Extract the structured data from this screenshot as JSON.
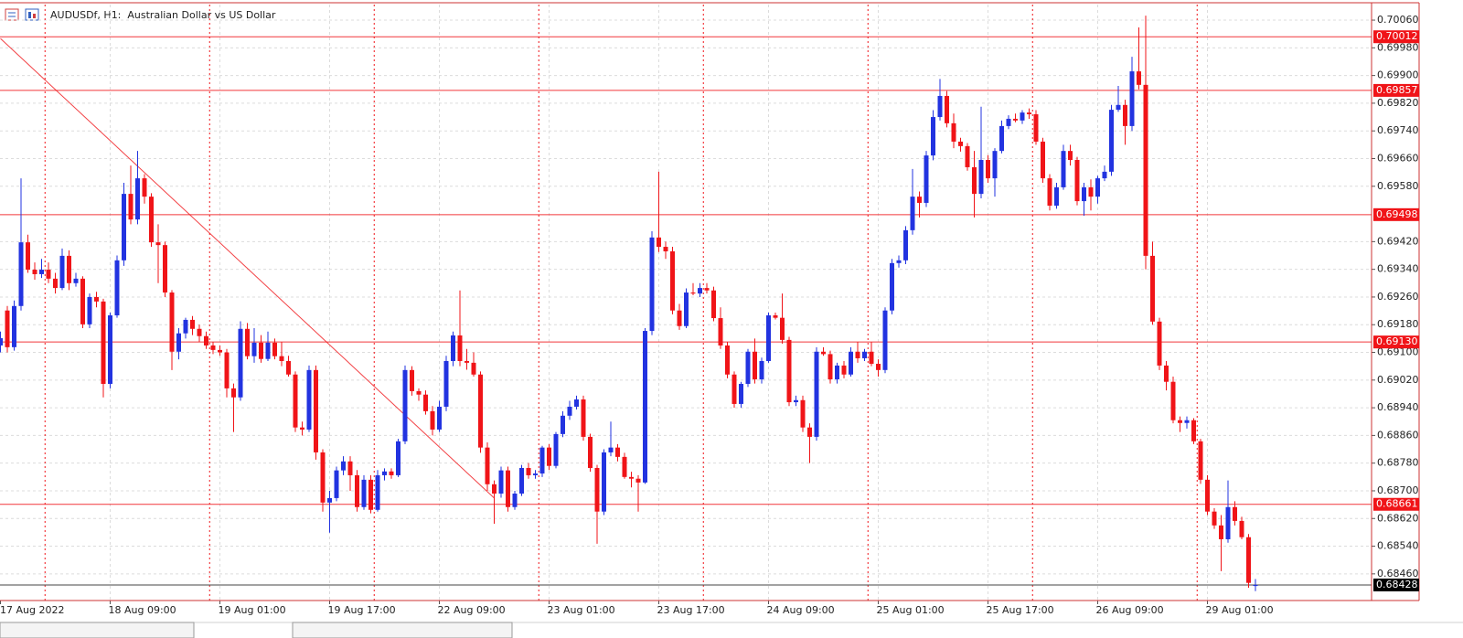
{
  "chart_data": {
    "type": "candlestick",
    "title": "AUDUSDf, H1:  Australian Dollar vs US Dollar",
    "up_color": "#2233e0",
    "down_color": "#f01418",
    "level_color": "#f01418",
    "grid": true,
    "ylim": [
      0.68383,
      0.70105
    ],
    "yticks": [
      {
        "value": 0.7006,
        "label": "0.70060"
      },
      {
        "value": 0.6998,
        "label": "0.69980"
      },
      {
        "value": 0.699,
        "label": "0.69900"
      },
      {
        "value": 0.6982,
        "label": "0.69820"
      },
      {
        "value": 0.6974,
        "label": "0.69740"
      },
      {
        "value": 0.6966,
        "label": "0.69660"
      },
      {
        "value": 0.6958,
        "label": "0.69580"
      },
      {
        "value": 0.6942,
        "label": "0.69420"
      },
      {
        "value": 0.6934,
        "label": "0.69340"
      },
      {
        "value": 0.6926,
        "label": "0.69260"
      },
      {
        "value": 0.6918,
        "label": "0.69180"
      },
      {
        "value": 0.691,
        "label": "0.69100"
      },
      {
        "value": 0.6902,
        "label": "0.69020"
      },
      {
        "value": 0.6894,
        "label": "0.68940"
      },
      {
        "value": 0.6886,
        "label": "0.68860"
      },
      {
        "value": 0.6878,
        "label": "0.68780"
      },
      {
        "value": 0.687,
        "label": "0.68700"
      },
      {
        "value": 0.6862,
        "label": "0.68620"
      },
      {
        "value": 0.6854,
        "label": "0.68540"
      },
      {
        "value": 0.6846,
        "label": "0.68460"
      }
    ],
    "levels": [
      {
        "value": 0.70012,
        "label": "0.70012"
      },
      {
        "value": 0.69857,
        "label": "0.69857"
      },
      {
        "value": 0.69498,
        "label": "0.69498"
      },
      {
        "value": 0.6913,
        "label": "0.69130"
      },
      {
        "value": 0.68661,
        "label": "0.68661"
      }
    ],
    "bid": {
      "value": 0.68428,
      "label": "0.68428"
    },
    "trendline": [
      0.70007,
      0.68679
    ],
    "categories": [
      "17 Aug 2022",
      null,
      null,
      null,
      null,
      null,
      null,
      null,
      null,
      null,
      null,
      null,
      null,
      null,
      null,
      null,
      "18 Aug 09:00",
      null,
      null,
      null,
      null,
      null,
      null,
      null,
      null,
      null,
      null,
      null,
      null,
      null,
      null,
      null,
      "19 Aug 01:00",
      null,
      null,
      null,
      null,
      null,
      null,
      null,
      null,
      null,
      null,
      null,
      null,
      null,
      null,
      null,
      "19 Aug 17:00",
      null,
      null,
      null,
      null,
      null,
      null,
      null,
      null,
      null,
      null,
      null,
      null,
      null,
      null,
      null,
      "22 Aug 09:00",
      null,
      null,
      null,
      null,
      null,
      null,
      null,
      null,
      null,
      null,
      null,
      null,
      null,
      null,
      null,
      "23 Aug 01:00",
      null,
      null,
      null,
      null,
      null,
      null,
      null,
      null,
      null,
      null,
      null,
      null,
      null,
      null,
      null,
      "23 Aug 17:00",
      null,
      null,
      null,
      null,
      null,
      null,
      null,
      null,
      null,
      null,
      null,
      null,
      null,
      null,
      null,
      "24 Aug 09:00",
      null,
      null,
      null,
      null,
      null,
      null,
      null,
      null,
      null,
      null,
      null,
      null,
      null,
      null,
      null,
      "25 Aug 01:00",
      null,
      null,
      null,
      null,
      null,
      null,
      null,
      null,
      null,
      null,
      null,
      null,
      null,
      null,
      null,
      "25 Aug 17:00",
      null,
      null,
      null,
      null,
      null,
      null,
      null,
      null,
      null,
      null,
      null,
      null,
      null,
      null,
      null,
      "26 Aug 09:00",
      null,
      null,
      null,
      null,
      null,
      null,
      null,
      null,
      null,
      null,
      null,
      null,
      null,
      null,
      null,
      "29 Aug 01:00",
      null,
      null,
      null,
      null,
      null,
      null,
      null
    ],
    "ohlc": [
      [
        0.6912,
        0.6916,
        0.691,
        0.69141
      ],
      [
        0.69221,
        0.69234,
        0.691,
        0.69115
      ],
      [
        0.69115,
        0.6925,
        0.69105,
        0.69234
      ],
      [
        0.69234,
        0.69603,
        0.69221,
        0.69418
      ],
      [
        0.69418,
        0.6944,
        0.6933,
        0.69339
      ],
      [
        0.69339,
        0.6936,
        0.6931,
        0.69326
      ],
      [
        0.69326,
        0.6937,
        0.69315,
        0.69339
      ],
      [
        0.69339,
        0.6936,
        0.693,
        0.69313
      ],
      [
        0.69313,
        0.6933,
        0.6927,
        0.69286
      ],
      [
        0.69286,
        0.694,
        0.6928,
        0.69379
      ],
      [
        0.69379,
        0.69395,
        0.6928,
        0.693
      ],
      [
        0.693,
        0.6933,
        0.6929,
        0.69313
      ],
      [
        0.69313,
        0.6932,
        0.6917,
        0.69181
      ],
      [
        0.69181,
        0.6927,
        0.6917,
        0.6926
      ],
      [
        0.6926,
        0.69275,
        0.6923,
        0.69247
      ],
      [
        0.69247,
        0.69255,
        0.6897,
        0.69009
      ],
      [
        0.69009,
        0.69215,
        0.68996,
        0.69207
      ],
      [
        0.69207,
        0.6938,
        0.692,
        0.69366
      ],
      [
        0.69366,
        0.6959,
        0.6935,
        0.69558
      ],
      [
        0.69558,
        0.6964,
        0.6947,
        0.69484
      ],
      [
        0.69484,
        0.69682,
        0.6947,
        0.69603
      ],
      [
        0.69603,
        0.69615,
        0.6953,
        0.6955
      ],
      [
        0.6955,
        0.6956,
        0.69405,
        0.69418
      ],
      [
        0.69418,
        0.6947,
        0.693,
        0.6941
      ],
      [
        0.6941,
        0.6942,
        0.6926,
        0.69273
      ],
      [
        0.69273,
        0.6928,
        0.69049,
        0.69102
      ],
      [
        0.69102,
        0.6917,
        0.6908,
        0.69155
      ],
      [
        0.69155,
        0.692,
        0.6914,
        0.69194
      ],
      [
        0.69194,
        0.69205,
        0.6915,
        0.69168
      ],
      [
        0.69168,
        0.6918,
        0.6913,
        0.69147
      ],
      [
        0.69147,
        0.6916,
        0.6911,
        0.6912
      ],
      [
        0.6912,
        0.6913,
        0.69095,
        0.69107
      ],
      [
        0.69107,
        0.6912,
        0.6909,
        0.691
      ],
      [
        0.691,
        0.6911,
        0.6897,
        0.68996
      ],
      [
        0.68996,
        0.6901,
        0.6887,
        0.6897
      ],
      [
        0.6897,
        0.6919,
        0.6896,
        0.69168
      ],
      [
        0.69168,
        0.69185,
        0.6908,
        0.69089
      ],
      [
        0.69089,
        0.6917,
        0.6907,
        0.69128
      ],
      [
        0.69128,
        0.6915,
        0.6907,
        0.69081
      ],
      [
        0.69081,
        0.6916,
        0.69075,
        0.69128
      ],
      [
        0.69128,
        0.6914,
        0.6908,
        0.69089
      ],
      [
        0.69089,
        0.6913,
        0.6906,
        0.69075
      ],
      [
        0.69075,
        0.6909,
        0.6903,
        0.69036
      ],
      [
        0.69036,
        0.69045,
        0.6887,
        0.68883
      ],
      [
        0.68883,
        0.689,
        0.6886,
        0.68877
      ],
      [
        0.68877,
        0.69062,
        0.6887,
        0.69049
      ],
      [
        0.69049,
        0.69062,
        0.6879,
        0.68811
      ],
      [
        0.68811,
        0.6882,
        0.6864,
        0.68666
      ],
      [
        0.68666,
        0.687,
        0.68579,
        0.68679
      ],
      [
        0.68679,
        0.6877,
        0.6867,
        0.68759
      ],
      [
        0.68759,
        0.688,
        0.68745,
        0.68785
      ],
      [
        0.68785,
        0.688,
        0.687,
        0.68745
      ],
      [
        0.68745,
        0.6876,
        0.6864,
        0.68653
      ],
      [
        0.68653,
        0.68745,
        0.68645,
        0.68732
      ],
      [
        0.68732,
        0.68745,
        0.68635,
        0.68645
      ],
      [
        0.68645,
        0.6876,
        0.6864,
        0.68745
      ],
      [
        0.68745,
        0.68765,
        0.6873,
        0.68756
      ],
      [
        0.68756,
        0.68765,
        0.68735,
        0.68745
      ],
      [
        0.68745,
        0.6885,
        0.6874,
        0.68843
      ],
      [
        0.68843,
        0.69062,
        0.68835,
        0.69049
      ],
      [
        0.69049,
        0.6906,
        0.68975,
        0.68988
      ],
      [
        0.68988,
        0.68996,
        0.6896,
        0.68978
      ],
      [
        0.68978,
        0.6899,
        0.6892,
        0.6893
      ],
      [
        0.6893,
        0.68945,
        0.6886,
        0.68877
      ],
      [
        0.68877,
        0.6896,
        0.6887,
        0.68943
      ],
      [
        0.68943,
        0.6909,
        0.6893,
        0.69075
      ],
      [
        0.69075,
        0.6916,
        0.6906,
        0.69149
      ],
      [
        0.69149,
        0.69279,
        0.6906,
        0.69075
      ],
      [
        0.69075,
        0.6911,
        0.6905,
        0.6907
      ],
      [
        0.6907,
        0.691,
        0.6903,
        0.69036
      ],
      [
        0.69036,
        0.69045,
        0.6881,
        0.68825
      ],
      [
        0.68825,
        0.6884,
        0.687,
        0.68719
      ],
      [
        0.68719,
        0.6873,
        0.68605,
        0.68692
      ],
      [
        0.68692,
        0.6877,
        0.6868,
        0.68759
      ],
      [
        0.68759,
        0.6877,
        0.6864,
        0.68653
      ],
      [
        0.68653,
        0.687,
        0.68645,
        0.68692
      ],
      [
        0.68692,
        0.68775,
        0.68685,
        0.68766
      ],
      [
        0.68766,
        0.6878,
        0.68735,
        0.68745
      ],
      [
        0.68745,
        0.6876,
        0.68735,
        0.6875
      ],
      [
        0.6875,
        0.6883,
        0.6874,
        0.68825
      ],
      [
        0.68825,
        0.68835,
        0.6876,
        0.68772
      ],
      [
        0.68772,
        0.6887,
        0.68765,
        0.68864
      ],
      [
        0.68864,
        0.6893,
        0.68855,
        0.68917
      ],
      [
        0.68917,
        0.6896,
        0.68905,
        0.68943
      ],
      [
        0.68943,
        0.68975,
        0.68935,
        0.68964
      ],
      [
        0.68964,
        0.68975,
        0.68845,
        0.68856
      ],
      [
        0.68856,
        0.68865,
        0.68755,
        0.68766
      ],
      [
        0.68766,
        0.68775,
        0.68547,
        0.6864
      ],
      [
        0.6864,
        0.6882,
        0.6863,
        0.68811
      ],
      [
        0.68811,
        0.689,
        0.688,
        0.68825
      ],
      [
        0.68825,
        0.68835,
        0.68785,
        0.68798
      ],
      [
        0.68798,
        0.6881,
        0.68735,
        0.6874
      ],
      [
        0.6874,
        0.68755,
        0.6871,
        0.68735
      ],
      [
        0.68735,
        0.68745,
        0.6864,
        0.68724
      ],
      [
        0.68724,
        0.6917,
        0.6872,
        0.69162
      ],
      [
        0.69162,
        0.6945,
        0.6915,
        0.69432
      ],
      [
        0.69432,
        0.69622,
        0.6939,
        0.69405
      ],
      [
        0.69405,
        0.6942,
        0.6937,
        0.69392
      ],
      [
        0.69392,
        0.69405,
        0.6921,
        0.69221
      ],
      [
        0.69221,
        0.6924,
        0.69165,
        0.69176
      ],
      [
        0.69176,
        0.69285,
        0.6917,
        0.69273
      ],
      [
        0.69273,
        0.693,
        0.69265,
        0.6927
      ],
      [
        0.6927,
        0.693,
        0.6926,
        0.69286
      ],
      [
        0.69286,
        0.693,
        0.6927,
        0.69279
      ],
      [
        0.69279,
        0.6929,
        0.6919,
        0.69199
      ],
      [
        0.69199,
        0.6923,
        0.6911,
        0.6912
      ],
      [
        0.6912,
        0.6913,
        0.69025,
        0.69036
      ],
      [
        0.69036,
        0.69045,
        0.6894,
        0.68951
      ],
      [
        0.68951,
        0.69015,
        0.6894,
        0.69009
      ],
      [
        0.69009,
        0.6911,
        0.69,
        0.69102
      ],
      [
        0.69102,
        0.6914,
        0.6901,
        0.69022
      ],
      [
        0.69022,
        0.69085,
        0.6901,
        0.69075
      ],
      [
        0.69075,
        0.69215,
        0.6907,
        0.69207
      ],
      [
        0.69207,
        0.69215,
        0.69195,
        0.692
      ],
      [
        0.692,
        0.6927,
        0.69125,
        0.69136
      ],
      [
        0.69136,
        0.69145,
        0.68945,
        0.68956
      ],
      [
        0.68956,
        0.68975,
        0.68945,
        0.68962
      ],
      [
        0.68962,
        0.68975,
        0.6887,
        0.68883
      ],
      [
        0.68883,
        0.68895,
        0.6878,
        0.68856
      ],
      [
        0.68856,
        0.69115,
        0.68845,
        0.69102
      ],
      [
        0.69102,
        0.69115,
        0.6909,
        0.69095
      ],
      [
        0.69095,
        0.69105,
        0.6901,
        0.69022
      ],
      [
        0.69022,
        0.6907,
        0.6901,
        0.69062
      ],
      [
        0.69062,
        0.69075,
        0.69025,
        0.69036
      ],
      [
        0.69036,
        0.69115,
        0.6903,
        0.69102
      ],
      [
        0.69102,
        0.6913,
        0.6907,
        0.69083
      ],
      [
        0.69083,
        0.6911,
        0.69075,
        0.69102
      ],
      [
        0.69102,
        0.6913,
        0.6906,
        0.69067
      ],
      [
        0.69067,
        0.6908,
        0.6903,
        0.69049
      ],
      [
        0.69049,
        0.6923,
        0.6904,
        0.69221
      ],
      [
        0.69221,
        0.6937,
        0.6921,
        0.69358
      ],
      [
        0.69358,
        0.6938,
        0.69345,
        0.69366
      ],
      [
        0.69366,
        0.69465,
        0.69355,
        0.69453
      ],
      [
        0.69453,
        0.6963,
        0.6944,
        0.6955
      ],
      [
        0.6955,
        0.69565,
        0.6949,
        0.69532
      ],
      [
        0.69532,
        0.69682,
        0.6952,
        0.69669
      ],
      [
        0.69669,
        0.698,
        0.69655,
        0.6978
      ],
      [
        0.6978,
        0.6989,
        0.6977,
        0.69841
      ],
      [
        0.69841,
        0.69855,
        0.6975,
        0.69762
      ],
      [
        0.69762,
        0.6979,
        0.6969,
        0.69709
      ],
      [
        0.69709,
        0.6972,
        0.6968,
        0.69696
      ],
      [
        0.69696,
        0.69705,
        0.69625,
        0.69635
      ],
      [
        0.69635,
        0.69682,
        0.6949,
        0.69558
      ],
      [
        0.69558,
        0.6981,
        0.69545,
        0.69656
      ],
      [
        0.69656,
        0.6967,
        0.6959,
        0.69603
      ],
      [
        0.69603,
        0.6969,
        0.6955,
        0.69682
      ],
      [
        0.69682,
        0.6977,
        0.69675,
        0.69754
      ],
      [
        0.69754,
        0.69785,
        0.69745,
        0.69775
      ],
      [
        0.69775,
        0.6979,
        0.69765,
        0.6977
      ],
      [
        0.6977,
        0.698,
        0.6976,
        0.69793
      ],
      [
        0.69793,
        0.69805,
        0.69775,
        0.69788
      ],
      [
        0.69788,
        0.698,
        0.697,
        0.69709
      ],
      [
        0.69709,
        0.6972,
        0.6959,
        0.69603
      ],
      [
        0.69603,
        0.69615,
        0.6951,
        0.69524
      ],
      [
        0.69524,
        0.6959,
        0.69515,
        0.69577
      ],
      [
        0.69577,
        0.697,
        0.6957,
        0.69682
      ],
      [
        0.69682,
        0.697,
        0.6964,
        0.69656
      ],
      [
        0.69656,
        0.69665,
        0.69525,
        0.69537
      ],
      [
        0.69537,
        0.6959,
        0.69495,
        0.69577
      ],
      [
        0.69577,
        0.696,
        0.6951,
        0.6955
      ],
      [
        0.6955,
        0.6961,
        0.6953,
        0.69603
      ],
      [
        0.69603,
        0.6964,
        0.69595,
        0.69622
      ],
      [
        0.69622,
        0.69815,
        0.6961,
        0.69801
      ],
      [
        0.69801,
        0.6987,
        0.69795,
        0.69815
      ],
      [
        0.69815,
        0.6983,
        0.697,
        0.69754
      ],
      [
        0.69754,
        0.69954,
        0.6974,
        0.69912
      ],
      [
        0.69912,
        0.70039,
        0.6986,
        0.69873
      ],
      [
        0.69873,
        0.70073,
        0.6934,
        0.69379
      ],
      [
        0.69379,
        0.6942,
        0.6918,
        0.69189
      ],
      [
        0.69189,
        0.692,
        0.69049,
        0.69062
      ],
      [
        0.69062,
        0.69075,
        0.6899,
        0.69015
      ],
      [
        0.69015,
        0.6903,
        0.68895,
        0.68904
      ],
      [
        0.68904,
        0.68915,
        0.6887,
        0.68896
      ],
      [
        0.68896,
        0.68915,
        0.6888,
        0.68904
      ],
      [
        0.68904,
        0.6891,
        0.68835,
        0.68843
      ],
      [
        0.68843,
        0.6885,
        0.6872,
        0.68732
      ],
      [
        0.68732,
        0.68745,
        0.6863,
        0.6864
      ],
      [
        0.6864,
        0.6865,
        0.6859,
        0.686
      ],
      [
        0.686,
        0.6863,
        0.68468,
        0.6856
      ],
      [
        0.6856,
        0.6873,
        0.6855,
        0.68653
      ],
      [
        0.68653,
        0.6867,
        0.686,
        0.68613
      ],
      [
        0.68613,
        0.68625,
        0.6856,
        0.68566
      ],
      [
        0.68566,
        0.68575,
        0.6842,
        0.68434
      ],
      [
        0.68425,
        0.68445,
        0.6841,
        0.68428
      ]
    ]
  }
}
